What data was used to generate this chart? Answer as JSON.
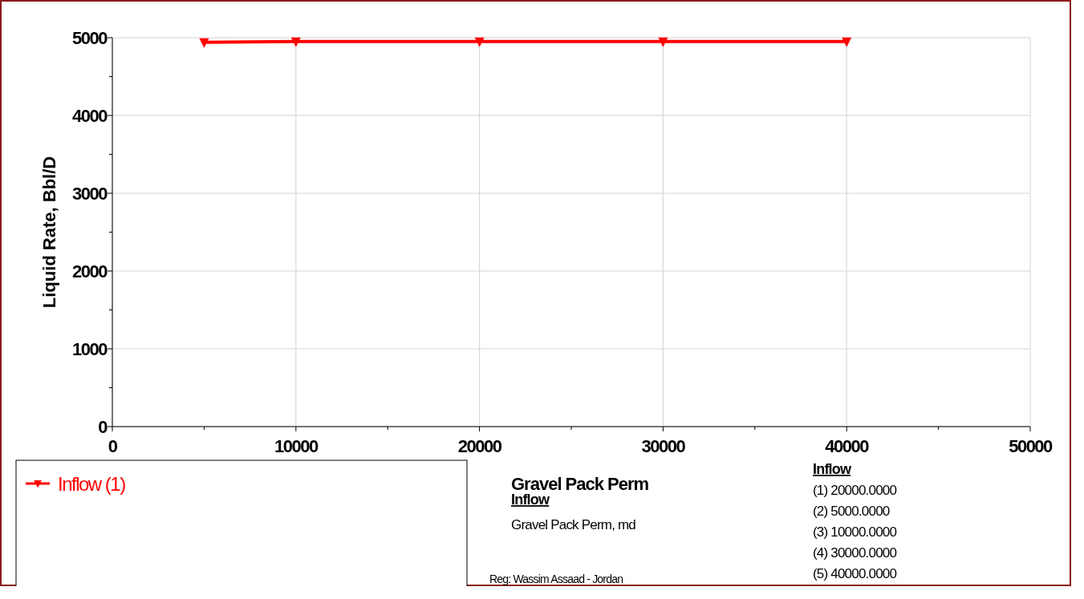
{
  "chart_data": {
    "type": "line",
    "xlabel": "Gravel Pack Perm",
    "ylabel": "Liquid Rate, Bbl/D",
    "x": [
      5000,
      10000,
      20000,
      30000,
      40000
    ],
    "series": [
      {
        "name": "Inflow (1)",
        "color": "#ff0000",
        "values": [
          4940,
          4950,
          4950,
          4950,
          4950
        ]
      }
    ],
    "xlim": [
      0,
      50000
    ],
    "ylim": [
      0,
      5000
    ],
    "xticks": [
      0,
      {
        "value": 5000,
        "label": null
      },
      10000,
      {
        "value": 15000,
        "label": null
      },
      20000,
      {
        "value": 25000,
        "label": null
      },
      30000,
      {
        "value": 35000,
        "label": null
      },
      40000,
      {
        "value": 45000,
        "label": null
      },
      50000
    ],
    "yticks": [
      0,
      {
        "value": 500,
        "label": null
      },
      1000,
      {
        "value": 1500,
        "label": null
      },
      2000,
      {
        "value": 2500,
        "label": null
      },
      3000,
      {
        "value": 3500,
        "label": null
      },
      4000,
      {
        "value": 4500,
        "label": null
      },
      5000
    ],
    "grid": true,
    "legend": "bottom left",
    "marker": "triangle",
    "line_style": "solid",
    "annotations": [
      "Inflow",
      "Gravel Pack Perm,   md",
      "Inflow",
      "(1)  20000.0000",
      "(2)  5000.0000",
      "(3)  10000.0000",
      "(4)  30000.0000",
      "(5)  40000.0000",
      "Reg: Wassim Assaad - Jordan"
    ]
  }
}
